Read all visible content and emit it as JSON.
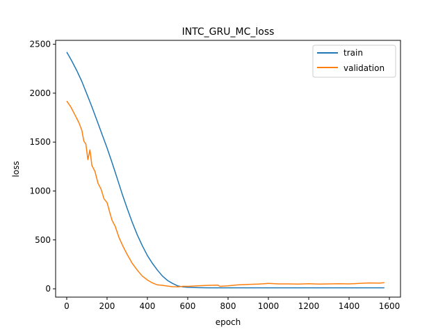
{
  "chart_data": {
    "type": "line",
    "title": "INTC_GRU_MC_loss",
    "xlabel": "epoch",
    "ylabel": "loss",
    "xlim": [
      -55,
      1655
    ],
    "ylim": [
      -85,
      2540
    ],
    "x_ticks": [
      0,
      200,
      400,
      600,
      800,
      1000,
      1200,
      1400,
      1600
    ],
    "y_ticks": [
      0,
      500,
      1000,
      1500,
      2000,
      2500
    ],
    "grid": false,
    "legend_position": "top-right",
    "series": [
      {
        "name": "train",
        "color": "#1f77b4",
        "x": [
          0,
          25,
          50,
          75,
          100,
          125,
          150,
          175,
          200,
          225,
          250,
          275,
          300,
          325,
          350,
          375,
          400,
          425,
          450,
          475,
          500,
          525,
          550,
          575,
          600,
          650,
          700,
          750,
          800,
          850,
          900,
          950,
          1000,
          1100,
          1200,
          1300,
          1400,
          1500,
          1575
        ],
        "y": [
          2420,
          2330,
          2230,
          2120,
          1990,
          1860,
          1720,
          1580,
          1440,
          1290,
          1130,
          970,
          820,
          680,
          550,
          440,
          340,
          260,
          190,
          130,
          85,
          55,
          30,
          20,
          15,
          12,
          10,
          10,
          10,
          10,
          10,
          10,
          10,
          10,
          10,
          10,
          10,
          10,
          10
        ]
      },
      {
        "name": "validation",
        "color": "#ff7f0e",
        "x": [
          0,
          20,
          40,
          60,
          75,
          85,
          95,
          105,
          115,
          125,
          140,
          155,
          170,
          185,
          200,
          215,
          225,
          240,
          260,
          280,
          300,
          325,
          350,
          375,
          400,
          425,
          450,
          475,
          500,
          525,
          550,
          575,
          600,
          650,
          700,
          750,
          760,
          800,
          850,
          900,
          950,
          1000,
          1050,
          1100,
          1150,
          1200,
          1250,
          1300,
          1350,
          1400,
          1450,
          1500,
          1550,
          1575
        ],
        "y": [
          1920,
          1860,
          1780,
          1700,
          1620,
          1510,
          1480,
          1320,
          1420,
          1260,
          1200,
          1080,
          1020,
          920,
          880,
          770,
          700,
          640,
          520,
          430,
          350,
          260,
          190,
          130,
          90,
          60,
          40,
          35,
          28,
          22,
          20,
          25,
          25,
          30,
          35,
          38,
          25,
          30,
          40,
          45,
          48,
          55,
          50,
          50,
          48,
          52,
          48,
          50,
          52,
          50,
          55,
          60,
          58,
          62
        ]
      }
    ]
  }
}
